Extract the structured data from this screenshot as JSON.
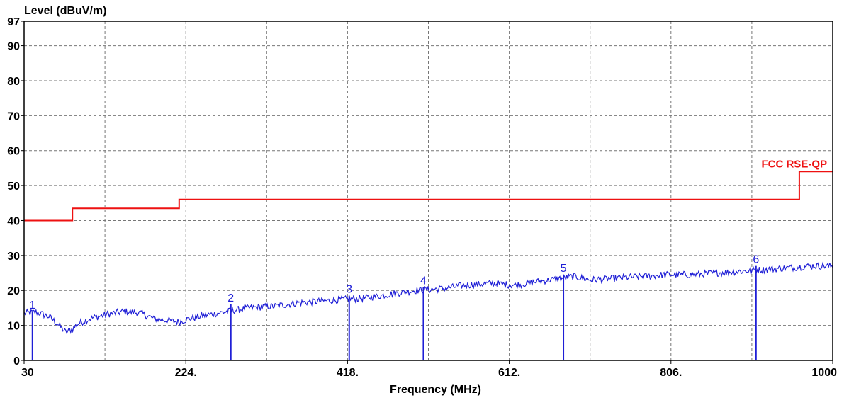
{
  "chart_data": {
    "type": "line",
    "ylabel": "Level (dBuV/m)",
    "xlabel": "Frequency (MHz)",
    "xlim": [
      30,
      1000
    ],
    "ylim": [
      0,
      97
    ],
    "x_ticks": [
      {
        "value": 30,
        "label": "30"
      },
      {
        "value": 224,
        "label": "224."
      },
      {
        "value": 418,
        "label": "418."
      },
      {
        "value": 612,
        "label": "612."
      },
      {
        "value": 806,
        "label": "806."
      },
      {
        "value": 1000,
        "label": "1000"
      }
    ],
    "y_ticks": [
      {
        "value": 0,
        "label": "0"
      },
      {
        "value": 10,
        "label": "10"
      },
      {
        "value": 20,
        "label": "20"
      },
      {
        "value": 30,
        "label": "30"
      },
      {
        "value": 40,
        "label": "40"
      },
      {
        "value": 50,
        "label": "50"
      },
      {
        "value": 60,
        "label": "60"
      },
      {
        "value": 70,
        "label": "70"
      },
      {
        "value": 80,
        "label": "80"
      },
      {
        "value": 90,
        "label": "90"
      },
      {
        "value": 97,
        "label": "97"
      }
    ],
    "grid": true,
    "limit_line": {
      "name": "FCC RSE-QP",
      "color": "#ee1111",
      "x": [
        30,
        88,
        88,
        216,
        216,
        960,
        960,
        1000
      ],
      "y": [
        40,
        40,
        43.5,
        43.5,
        46,
        46,
        54,
        54
      ]
    },
    "series": [
      {
        "color": "#1f1fd6",
        "x": [
          30,
          45,
          60,
          70,
          80,
          88,
          95,
          110,
          130,
          150,
          170,
          185,
          200,
          215,
          230,
          250,
          275,
          300,
          330,
          360,
          390,
          418,
          440,
          470,
          500,
          530,
          560,
          590,
          620,
          645,
          675,
          690,
          710,
          740,
          770,
          800,
          830,
          860,
          890,
          920,
          950,
          975,
          1000
        ],
        "y": [
          13.5,
          13.8,
          12.5,
          10.5,
          8.0,
          9.0,
          10.5,
          12.0,
          13.2,
          14.0,
          13.5,
          12.0,
          11.5,
          11.0,
          12.0,
          13.0,
          14.0,
          15.0,
          15.5,
          16.5,
          17.0,
          17.5,
          17.8,
          19.0,
          20.0,
          20.5,
          21.5,
          22.0,
          21.5,
          22.5,
          23.5,
          24.0,
          23.0,
          23.5,
          24.0,
          24.5,
          24.5,
          25.0,
          25.5,
          26.0,
          26.5,
          27.0,
          27.0
        ]
      }
    ],
    "markers": [
      {
        "label": "1",
        "x": 40,
        "y": 14.0
      },
      {
        "label": "2",
        "x": 278,
        "y": 16.0
      },
      {
        "label": "3",
        "x": 420,
        "y": 18.5
      },
      {
        "label": "4",
        "x": 509,
        "y": 21.0
      },
      {
        "label": "5",
        "x": 677,
        "y": 24.5
      },
      {
        "label": "6",
        "x": 908,
        "y": 27.0
      }
    ]
  }
}
